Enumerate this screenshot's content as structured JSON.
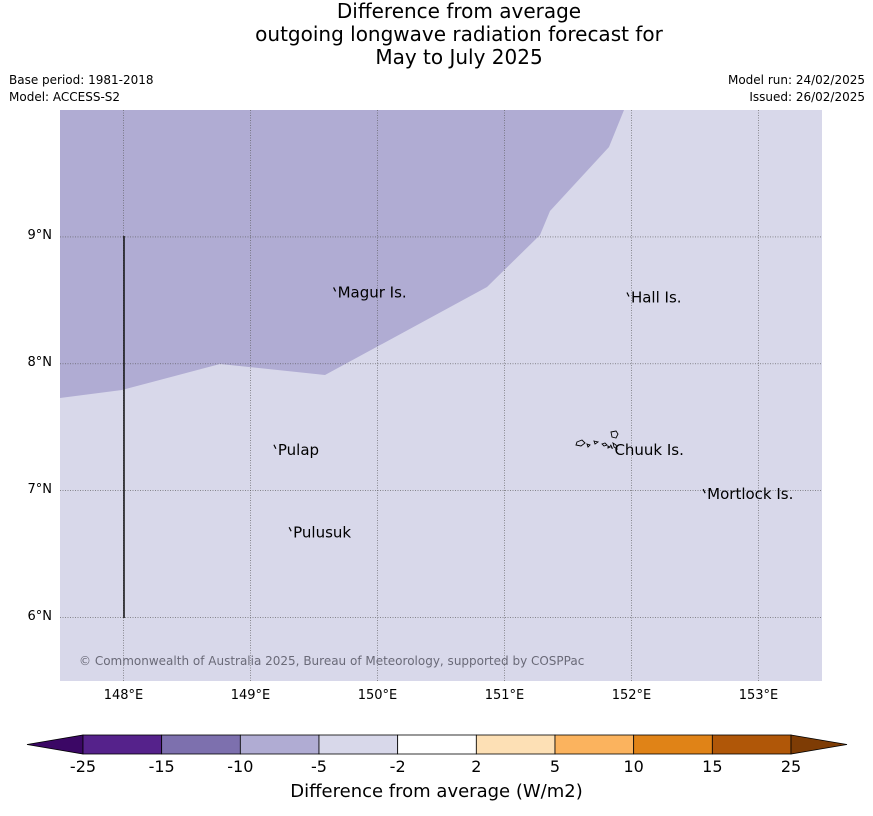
{
  "title": {
    "line1": "Difference from average",
    "line2": "outgoing longwave radiation forecast for",
    "line3": "May to July 2025"
  },
  "meta": {
    "base_period": "Base period: 1981-2018",
    "model": "Model: ACCESS-S2",
    "model_run": "Model run: 24/02/2025",
    "issued": "Issued: 26/02/2025"
  },
  "map": {
    "lon_range": [
      147.5,
      153.5
    ],
    "lat_range": [
      5.5,
      10.0
    ],
    "lon_ticks": [
      "148°E",
      "149°E",
      "150°E",
      "151°E",
      "152°E",
      "153°E"
    ],
    "lat_ticks": [
      "9°N",
      "8°N",
      "7°N",
      "6°N"
    ],
    "copyright": "© Commonwealth of Australia 2025, Bureau of Meteorology, supported by COSPPac",
    "places": [
      {
        "name": "Magur Is.",
        "lon": 149.67,
        "lat": 8.57
      },
      {
        "name": "Hall Is.",
        "lon": 151.98,
        "lat": 8.53
      },
      {
        "name": "Pulap",
        "lon": 149.2,
        "lat": 7.33
      },
      {
        "name": "Chuuk Is.",
        "lon": 151.85,
        "lat": 7.33
      },
      {
        "name": "Mortlock Is.",
        "lon": 152.58,
        "lat": 6.98
      },
      {
        "name": "Pulusuk",
        "lon": 149.32,
        "lat": 6.68
      }
    ],
    "regions": [
      {
        "category": "-10 to -5",
        "color": "#b0acd3"
      },
      {
        "category": "-5 to -2",
        "color": "#d8d8ea"
      }
    ],
    "boundary_line": {
      "lon": 148.0,
      "lat_from": 6.0,
      "lat_to": 9.0
    }
  },
  "colorbar": {
    "title": "Difference from average (W/m2)",
    "labels": [
      "-25",
      "-15",
      "-10",
      "-5",
      "-2",
      "2",
      "5",
      "10",
      "15",
      "25"
    ],
    "colors": [
      "#55228b",
      "#7d70ae",
      "#b0acd3",
      "#d8d8ea",
      "#ffffff",
      "#fde0b5",
      "#fbb35e",
      "#e08317",
      "#b05708"
    ],
    "under_color": "#3b0765",
    "over_color": "#7e3c05"
  }
}
